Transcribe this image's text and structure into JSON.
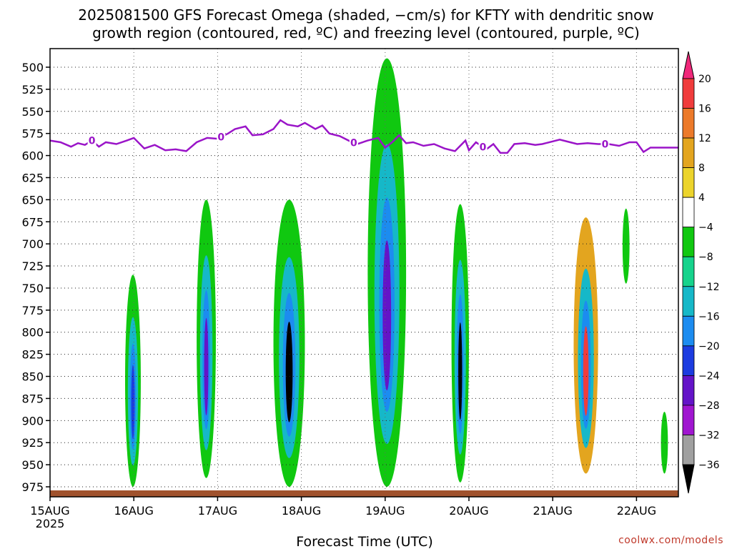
{
  "chart_data": {
    "type": "heatmap",
    "title_lines": [
      "2025081500 GFS Forecast Omega (shaded, −cm/s) for KFTY with dendritic snow",
      "growth region (contoured, red, ºC) and freezing level (contoured, purple, ºC)"
    ],
    "xlabel": "Forecast Time (UTC)",
    "credit": "coolwx.com/models",
    "x_ticks": [
      {
        "label": "15AUG",
        "sub": "2025",
        "hours": 0
      },
      {
        "label": "16AUG",
        "sub": "",
        "hours": 24
      },
      {
        "label": "17AUG",
        "sub": "",
        "hours": 48
      },
      {
        "label": "18AUG",
        "sub": "",
        "hours": 72
      },
      {
        "label": "19AUG",
        "sub": "",
        "hours": 96
      },
      {
        "label": "20AUG",
        "sub": "",
        "hours": 120
      },
      {
        "label": "21AUG",
        "sub": "",
        "hours": 144
      },
      {
        "label": "22AUG",
        "sub": "",
        "hours": 168
      }
    ],
    "xlim_hours": [
      0,
      180
    ],
    "y_axis": "pressure (hPa), inverted",
    "ylim_hpa": [
      985,
      475
    ],
    "y_ticks": [
      500,
      525,
      550,
      575,
      600,
      625,
      650,
      675,
      700,
      725,
      750,
      775,
      800,
      825,
      850,
      875,
      900,
      925,
      950,
      975
    ],
    "colorbar": {
      "labels": [
        "20",
        "16",
        "12",
        "8",
        "4",
        "−4",
        "−8",
        "−12",
        "−16",
        "−20",
        "−24",
        "−28",
        "−32",
        "−36"
      ],
      "colors": [
        "#f0287a",
        "#f03c3c",
        "#ec7a2a",
        "#e3a51f",
        "#ecd42c",
        "#ffffff",
        "#10c810",
        "#16d38c",
        "#16b8c8",
        "#1c8cf0",
        "#1c3ce0",
        "#6414c8",
        "#a016d0",
        "#a0a0a0",
        "#000000"
      ]
    },
    "freezing_level": {
      "label": "0",
      "color": "#9a14c8",
      "points": [
        [
          0,
          583
        ],
        [
          3,
          585
        ],
        [
          6,
          590
        ],
        [
          8,
          586
        ],
        [
          10,
          588
        ],
        [
          12,
          583
        ],
        [
          14,
          590
        ],
        [
          16,
          585
        ],
        [
          19,
          587
        ],
        [
          22,
          583
        ],
        [
          24,
          580
        ],
        [
          27,
          592
        ],
        [
          30,
          588
        ],
        [
          33,
          594
        ],
        [
          36,
          593
        ],
        [
          39,
          595
        ],
        [
          42,
          585
        ],
        [
          45,
          580
        ],
        [
          48,
          581
        ],
        [
          51,
          575
        ],
        [
          53,
          570
        ],
        [
          56,
          567
        ],
        [
          58,
          577
        ],
        [
          61,
          576
        ],
        [
          64,
          570
        ],
        [
          66,
          560
        ],
        [
          68,
          565
        ],
        [
          71,
          567
        ],
        [
          73,
          563
        ],
        [
          76,
          570
        ],
        [
          78,
          566
        ],
        [
          80,
          575
        ],
        [
          83,
          578
        ],
        [
          86,
          584
        ],
        [
          88,
          587
        ],
        [
          91,
          583
        ],
        [
          94,
          580
        ],
        [
          96,
          591
        ],
        [
          98,
          585
        ],
        [
          100,
          577
        ],
        [
          102,
          586
        ],
        [
          104,
          585
        ],
        [
          107,
          589
        ],
        [
          110,
          587
        ],
        [
          113,
          592
        ],
        [
          116,
          595
        ],
        [
          119,
          583
        ],
        [
          120,
          594
        ],
        [
          122,
          585
        ],
        [
          125,
          593
        ],
        [
          127,
          587
        ],
        [
          129,
          597
        ],
        [
          131,
          597
        ],
        [
          133,
          587
        ],
        [
          136,
          586
        ],
        [
          139,
          588
        ],
        [
          141,
          587
        ],
        [
          144,
          584
        ],
        [
          146,
          582
        ],
        [
          149,
          585
        ],
        [
          151,
          587
        ],
        [
          154,
          586
        ],
        [
          157,
          587
        ],
        [
          160,
          587
        ],
        [
          163,
          589
        ],
        [
          166,
          585
        ],
        [
          168,
          585
        ],
        [
          170,
          596
        ],
        [
          172,
          591
        ],
        [
          175,
          591
        ],
        [
          180,
          591
        ]
      ],
      "label_hours": [
        12,
        49,
        87,
        124,
        159
      ]
    },
    "omega_cells": [
      {
        "x0": 21.5,
        "x1": 26,
        "p0": 735,
        "p1": 975,
        "cmin": 0,
        "color": "#10c810",
        "core": "#1c3ce0"
      },
      {
        "x0": 42,
        "x1": 47.5,
        "p0": 650,
        "p1": 965,
        "cmin": 0,
        "color": "#10c810",
        "core": "#6414c8"
      },
      {
        "x0": 64,
        "x1": 73,
        "p0": 650,
        "p1": 975,
        "cmin": 0,
        "color": "#10c810",
        "core": "#000000"
      },
      {
        "x0": 91,
        "x1": 102,
        "p0": 490,
        "p1": 975,
        "cmin": 0,
        "color": "#10c810",
        "core": "#6414c8"
      },
      {
        "x0": 115,
        "x1": 120,
        "p0": 655,
        "p1": 970,
        "cmin": 0,
        "color": "#10c810",
        "core": "#000000"
      },
      {
        "x0": 150,
        "x1": 157,
        "p0": 670,
        "p1": 960,
        "cmin": 0,
        "color": "#e3a51f",
        "core": "#f03c3c"
      },
      {
        "x0": 164,
        "x1": 166,
        "p0": 660,
        "p1": 745,
        "cmin": 0,
        "color": "#10c810",
        "core": "#10c810"
      },
      {
        "x0": 175,
        "x1": 177,
        "p0": 890,
        "p1": 960,
        "cmin": 0,
        "color": "#10c810",
        "core": "#10c810"
      }
    ]
  }
}
